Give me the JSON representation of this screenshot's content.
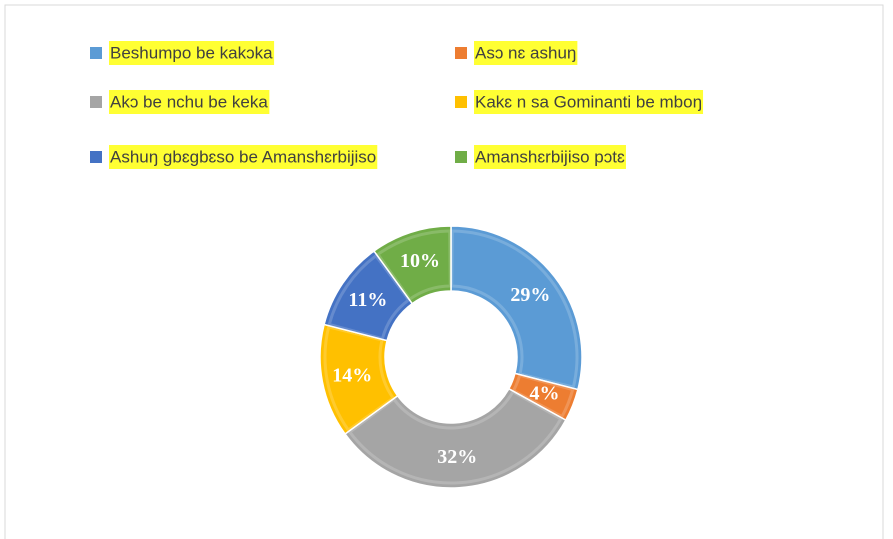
{
  "chart_data": {
    "type": "doughnut",
    "categories": [
      "Beshumpo be kakɔka",
      "Asɔ nɛ ashuŋ",
      "Akɔ be nchu be keka",
      "Kakɛ n sa Gominanti be mboŋ",
      "Ashuŋ gbɛgbɛso be Amanshɛrbijiso",
      "Amanshɛrbijiso pɔtɛ"
    ],
    "values": [
      29,
      4,
      32,
      14,
      11,
      10
    ],
    "value_labels": [
      "29%",
      "4%",
      "32%",
      "14%",
      "11%",
      "10%"
    ],
    "colors": [
      "#5b9bd5",
      "#ed7d31",
      "#a5a5a5",
      "#ffc000",
      "#4472c4",
      "#70ad47"
    ],
    "legend": "top"
  }
}
